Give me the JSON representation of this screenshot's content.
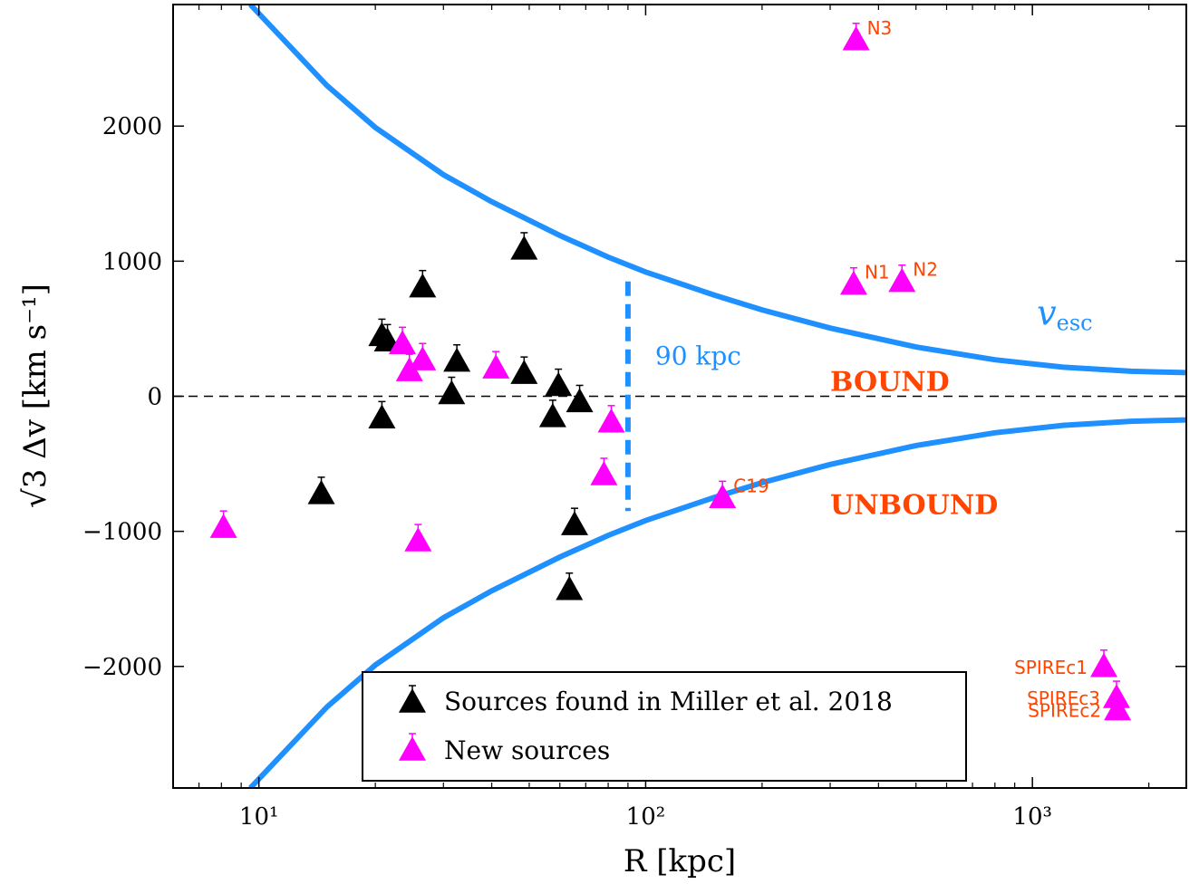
{
  "chart_data": {
    "type": "scatter",
    "xlabel": "R [kpc]",
    "ylabel": "√3 Δv [km s⁻¹]",
    "xscale": "log",
    "xlim": [
      6,
      2500
    ],
    "ylim": [
      -2900,
      2900
    ],
    "x_ticks": [
      {
        "value": 10,
        "label": "10¹"
      },
      {
        "value": 100,
        "label": "10²"
      },
      {
        "value": 1000,
        "label": "10³"
      }
    ],
    "y_ticks": [
      {
        "value": -2000,
        "label": "−2000"
      },
      {
        "value": -1000,
        "label": "−1000"
      },
      {
        "value": 0,
        "label": "0"
      },
      {
        "value": 1000,
        "label": "1000"
      },
      {
        "value": 2000,
        "label": "2000"
      }
    ],
    "grid": false,
    "escape_velocity": {
      "label": "v_esc",
      "color": "#1e90ff",
      "curve_x": [
        9.5,
        15,
        20,
        30,
        40,
        60,
        80,
        100,
        150,
        200,
        300,
        500,
        800,
        1200,
        1800,
        2500
      ],
      "curve_y": [
        2900,
        2300,
        1990,
        1640,
        1440,
        1190,
        1030,
        920,
        750,
        640,
        505,
        365,
        270,
        215,
        185,
        175
      ]
    },
    "vertical_line": {
      "x": 90,
      "y_range": [
        -850,
        850
      ],
      "label": "90 kpc"
    },
    "zero_line": {
      "y": 0
    },
    "region_labels": {
      "bound": "BOUND",
      "unbound": "UNBOUND"
    },
    "legend": {
      "placement": "lower-center",
      "entries": [
        "Sources found in Miller et al. 2018",
        "New sources"
      ]
    },
    "series": [
      {
        "name": "Sources found in Miller et al. 2018",
        "color": "#000000",
        "points": [
          {
            "x": 14.5,
            "y": -720
          },
          {
            "x": 20.8,
            "y": 450
          },
          {
            "x": 21.5,
            "y": 410
          },
          {
            "x": 20.8,
            "y": -160
          },
          {
            "x": 26.5,
            "y": 810
          },
          {
            "x": 31.5,
            "y": 20
          },
          {
            "x": 32.5,
            "y": 260
          },
          {
            "x": 48.5,
            "y": 1090
          },
          {
            "x": 48.5,
            "y": 170
          },
          {
            "x": 57.5,
            "y": -150
          },
          {
            "x": 59.5,
            "y": 80
          },
          {
            "x": 63.5,
            "y": -1430
          },
          {
            "x": 65.5,
            "y": -950
          },
          {
            "x": 67.5,
            "y": -40
          }
        ]
      },
      {
        "name": "New sources",
        "color": "#ff00ff",
        "points": [
          {
            "x": 8.1,
            "y": -970,
            "label": ""
          },
          {
            "x": 23.5,
            "y": 390,
            "label": ""
          },
          {
            "x": 24.5,
            "y": 190,
            "label": ""
          },
          {
            "x": 26.5,
            "y": 270,
            "label": ""
          },
          {
            "x": 25.8,
            "y": -1070,
            "label": ""
          },
          {
            "x": 41.0,
            "y": 210,
            "label": ""
          },
          {
            "x": 78.0,
            "y": -580,
            "label": ""
          },
          {
            "x": 81.5,
            "y": -190,
            "label": ""
          },
          {
            "x": 158,
            "y": -750,
            "label": "C19"
          },
          {
            "x": 345,
            "y": 830,
            "label": "N1"
          },
          {
            "x": 460,
            "y": 850,
            "label": "N2"
          },
          {
            "x": 350,
            "y": 2640,
            "label": "N3"
          },
          {
            "x": 1530,
            "y": -2000,
            "label": "SPIREc1"
          },
          {
            "x": 1650,
            "y": -2230,
            "label": "SPIREc3"
          },
          {
            "x": 1660,
            "y": -2320,
            "label": "SPIREc2"
          }
        ]
      }
    ]
  }
}
